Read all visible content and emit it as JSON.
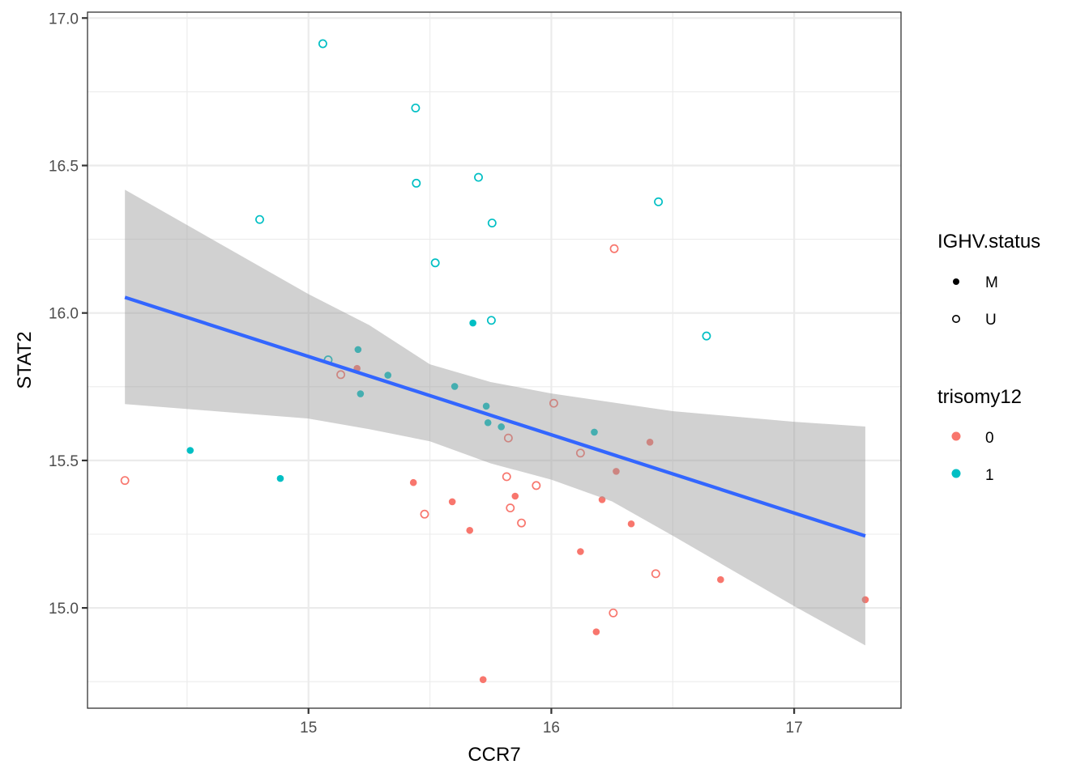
{
  "chart_data": {
    "type": "scatter",
    "title": "",
    "xlabel": "CCR7",
    "ylabel": "STAT2",
    "xlim": [
      14.09,
      17.44
    ],
    "ylim": [
      14.66,
      17.02
    ],
    "x_ticks": [
      15,
      16,
      17
    ],
    "x_tick_labels": [
      "15",
      "16",
      "17"
    ],
    "y_ticks": [
      15.0,
      15.5,
      16.0,
      16.5,
      17.0
    ],
    "y_tick_labels": [
      "15.0",
      "15.5",
      "16.0",
      "16.5",
      "17.0"
    ],
    "x_minor": [
      14.5,
      15.5,
      16.5
    ],
    "y_minor": [
      14.75,
      15.25,
      15.75,
      16.25,
      16.75
    ],
    "grid": true,
    "theme": "bw",
    "colors": {
      "trisomy12_0": "#F8766D",
      "trisomy12_1": "#00BFC4",
      "fit_line": "#3366FF",
      "ribbon": "#999999",
      "grid_major": "#EBEBEB",
      "panel_border": "#333333"
    },
    "legend": {
      "placement": "right",
      "groups": [
        {
          "title": "IGHV.status",
          "aesthetic": "shape",
          "entries": [
            {
              "label": "M",
              "shape": "filled"
            },
            {
              "label": "U",
              "shape": "open"
            }
          ]
        },
        {
          "title": "trisomy12",
          "aesthetic": "color",
          "entries": [
            {
              "label": "0",
              "color": "#F8766D"
            },
            {
              "label": "1",
              "color": "#00BFC4"
            }
          ]
        }
      ]
    },
    "series": [
      {
        "name": "trisomy12=1",
        "trisomy12": "1",
        "points": [
          {
            "x": 15.059,
            "y": 16.913,
            "IGHV": "U"
          },
          {
            "x": 15.441,
            "y": 16.695,
            "IGHV": "U"
          },
          {
            "x": 15.444,
            "y": 16.44,
            "IGHV": "U"
          },
          {
            "x": 15.7,
            "y": 16.46,
            "IGHV": "U"
          },
          {
            "x": 15.756,
            "y": 16.305,
            "IGHV": "U"
          },
          {
            "x": 14.799,
            "y": 16.317,
            "IGHV": "U"
          },
          {
            "x": 15.522,
            "y": 16.17,
            "IGHV": "U"
          },
          {
            "x": 16.441,
            "y": 16.377,
            "IGHV": "U"
          },
          {
            "x": 16.639,
            "y": 15.922,
            "IGHV": "U"
          },
          {
            "x": 15.677,
            "y": 15.966,
            "IGHV": "M"
          },
          {
            "x": 15.753,
            "y": 15.975,
            "IGHV": "U"
          },
          {
            "x": 15.204,
            "y": 15.876,
            "IGHV": "M"
          },
          {
            "x": 15.081,
            "y": 15.841,
            "IGHV": "U"
          },
          {
            "x": 15.327,
            "y": 15.789,
            "IGHV": "M"
          },
          {
            "x": 15.214,
            "y": 15.726,
            "IGHV": "M"
          },
          {
            "x": 15.602,
            "y": 15.751,
            "IGHV": "M"
          },
          {
            "x": 15.732,
            "y": 15.684,
            "IGHV": "M"
          },
          {
            "x": 15.739,
            "y": 15.628,
            "IGHV": "M"
          },
          {
            "x": 15.794,
            "y": 15.614,
            "IGHV": "M"
          },
          {
            "x": 16.177,
            "y": 15.596,
            "IGHV": "M"
          },
          {
            "x": 14.513,
            "y": 15.534,
            "IGHV": "M"
          },
          {
            "x": 14.884,
            "y": 15.439,
            "IGHV": "M"
          }
        ]
      },
      {
        "name": "trisomy12=0",
        "trisomy12": "0",
        "points": [
          {
            "x": 16.259,
            "y": 16.218,
            "IGHV": "U"
          },
          {
            "x": 15.2,
            "y": 15.812,
            "IGHV": "M"
          },
          {
            "x": 15.133,
            "y": 15.791,
            "IGHV": "U"
          },
          {
            "x": 16.01,
            "y": 15.694,
            "IGHV": "U"
          },
          {
            "x": 15.823,
            "y": 15.576,
            "IGHV": "U"
          },
          {
            "x": 16.12,
            "y": 15.525,
            "IGHV": "U"
          },
          {
            "x": 16.406,
            "y": 15.562,
            "IGHV": "M"
          },
          {
            "x": 16.267,
            "y": 15.463,
            "IGHV": "M"
          },
          {
            "x": 14.244,
            "y": 15.432,
            "IGHV": "U"
          },
          {
            "x": 15.432,
            "y": 15.425,
            "IGHV": "M"
          },
          {
            "x": 15.478,
            "y": 15.318,
            "IGHV": "U"
          },
          {
            "x": 15.592,
            "y": 15.36,
            "IGHV": "M"
          },
          {
            "x": 15.664,
            "y": 15.263,
            "IGHV": "M"
          },
          {
            "x": 15.816,
            "y": 15.445,
            "IGHV": "U"
          },
          {
            "x": 15.851,
            "y": 15.379,
            "IGHV": "M"
          },
          {
            "x": 15.831,
            "y": 15.339,
            "IGHV": "U"
          },
          {
            "x": 15.938,
            "y": 15.415,
            "IGHV": "U"
          },
          {
            "x": 15.877,
            "y": 15.288,
            "IGHV": "U"
          },
          {
            "x": 16.209,
            "y": 15.367,
            "IGHV": "M"
          },
          {
            "x": 16.329,
            "y": 15.285,
            "IGHV": "M"
          },
          {
            "x": 16.12,
            "y": 15.191,
            "IGHV": "M"
          },
          {
            "x": 16.43,
            "y": 15.116,
            "IGHV": "U"
          },
          {
            "x": 16.697,
            "y": 15.096,
            "IGHV": "M"
          },
          {
            "x": 17.293,
            "y": 15.028,
            "IGHV": "M"
          },
          {
            "x": 16.255,
            "y": 14.983,
            "IGHV": "U"
          },
          {
            "x": 16.185,
            "y": 14.919,
            "IGHV": "M"
          },
          {
            "x": 15.719,
            "y": 14.757,
            "IGHV": "M"
          }
        ]
      }
    ],
    "fit": {
      "method": "lm",
      "line": [
        {
          "x": 14.244,
          "y": 16.053
        },
        {
          "x": 17.293,
          "y": 15.244
        }
      ],
      "ribbon": [
        {
          "x": 14.244,
          "upper": 16.418,
          "lower": 15.691
        },
        {
          "x": 15.0,
          "upper": 16.064,
          "lower": 15.642
        },
        {
          "x": 15.25,
          "upper": 15.959,
          "lower": 15.606
        },
        {
          "x": 15.5,
          "upper": 15.826,
          "lower": 15.565
        },
        {
          "x": 15.75,
          "upper": 15.766,
          "lower": 15.49
        },
        {
          "x": 16.0,
          "upper": 15.727,
          "lower": 15.435
        },
        {
          "x": 16.25,
          "upper": 15.697,
          "lower": 15.361
        },
        {
          "x": 16.5,
          "upper": 15.667,
          "lower": 15.245
        },
        {
          "x": 17.0,
          "upper": 15.631,
          "lower": 15.006
        },
        {
          "x": 17.293,
          "upper": 15.615,
          "lower": 14.873
        }
      ]
    }
  }
}
